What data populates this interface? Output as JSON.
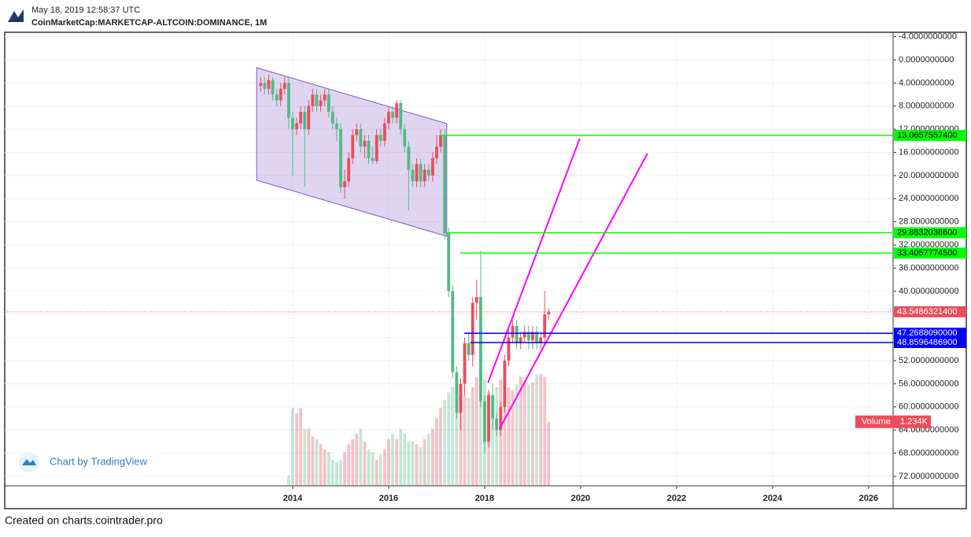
{
  "header": {
    "timestamp": "May 18, 2019 12:58:37 UTC",
    "symbol": "CoinMarketCap:MARKETCAP-ALTCOIN:DOMINANCE, 1M"
  },
  "footer": "Created on charts.cointrader.pro",
  "watermark": "Chart by TradingView",
  "chart_data": {
    "type": "candlestick",
    "inverted": true,
    "grid": true,
    "up_color": "#53b987",
    "down_color": "#eb4d5c",
    "x": [
      2013.333,
      2013.417,
      2013.5,
      2013.583,
      2013.667,
      2013.75,
      2013.833,
      2013.917,
      2014.0,
      2014.083,
      2014.167,
      2014.25,
      2014.333,
      2014.417,
      2014.5,
      2014.583,
      2014.667,
      2014.75,
      2014.833,
      2014.917,
      2015.0,
      2015.083,
      2015.167,
      2015.25,
      2015.333,
      2015.417,
      2015.5,
      2015.583,
      2015.667,
      2015.75,
      2015.833,
      2015.917,
      2016.0,
      2016.083,
      2016.167,
      2016.25,
      2016.333,
      2016.417,
      2016.5,
      2016.583,
      2016.667,
      2016.75,
      2016.833,
      2016.917,
      2017.0,
      2017.083,
      2017.167,
      2017.25,
      2017.333,
      2017.417,
      2017.5,
      2017.583,
      2017.667,
      2017.75,
      2017.833,
      2017.917,
      2018.0,
      2018.083,
      2018.167,
      2018.25,
      2018.333,
      2018.417,
      2018.5,
      2018.583,
      2018.667,
      2018.75,
      2018.833,
      2018.917,
      2019.0,
      2019.083,
      2019.167,
      2019.25,
      2019.333
    ],
    "open": [
      4.5,
      4,
      5,
      3.5,
      6,
      7,
      5,
      4,
      10,
      12,
      11,
      9,
      12,
      8,
      6,
      8,
      7,
      6,
      9,
      11,
      12,
      22,
      21,
      17,
      13,
      12,
      15,
      14,
      17,
      17.5,
      13,
      14,
      11,
      9,
      10,
      7.5,
      12,
      15,
      19,
      21,
      18,
      21,
      19,
      20,
      17,
      15,
      13,
      30,
      40,
      54,
      61,
      56,
      49,
      51,
      42,
      41,
      59,
      66,
      58,
      62,
      64,
      60,
      52,
      48,
      46,
      49,
      48,
      47,
      48.5,
      47,
      49,
      48,
      44
    ],
    "high": [
      5.5,
      6,
      6,
      7,
      8,
      8,
      6,
      12,
      20,
      13,
      12,
      22,
      13,
      9,
      9,
      9,
      8,
      10,
      12,
      14,
      23,
      24,
      22,
      18,
      14,
      16,
      17,
      18,
      18,
      18,
      15,
      15,
      12,
      11,
      11,
      13,
      16,
      26,
      22,
      22,
      22,
      22,
      21,
      21,
      18,
      16,
      31,
      41,
      55,
      62,
      64,
      58,
      52,
      53,
      45,
      60,
      68,
      67,
      64,
      65,
      65,
      61,
      53,
      49,
      50,
      50,
      49,
      50,
      50,
      50,
      50,
      49,
      45
    ],
    "low": [
      3,
      3,
      2.5,
      3,
      5,
      4,
      3,
      3,
      9,
      10,
      8,
      8,
      7,
      5,
      5,
      6,
      5,
      5,
      8,
      10,
      11,
      19,
      16,
      12,
      11,
      11,
      13,
      13,
      15,
      12,
      12,
      10,
      8,
      8,
      7,
      7,
      11,
      14,
      18,
      17,
      17,
      18,
      18,
      16,
      13,
      12,
      12,
      29,
      39,
      53,
      55,
      48,
      47,
      41,
      38,
      33,
      58,
      57,
      56,
      61,
      59,
      51,
      46,
      45,
      45,
      47,
      46,
      46,
      46,
      46,
      47,
      40,
      43
    ],
    "close": [
      4,
      5,
      3.5,
      6,
      7,
      5,
      4,
      10,
      12,
      11,
      9,
      12,
      8,
      6,
      8,
      7,
      6,
      9,
      11,
      12,
      22,
      21,
      17,
      13,
      12,
      15,
      14,
      17,
      17.5,
      13,
      14,
      11,
      9,
      10,
      7.5,
      12,
      15,
      19,
      21,
      18,
      21,
      19,
      20,
      17,
      15,
      13,
      30,
      40,
      54,
      61,
      56,
      49,
      51,
      42,
      41,
      59,
      66,
      58,
      62,
      64,
      60,
      52,
      48,
      46,
      49,
      48,
      47,
      48.5,
      47,
      49,
      48,
      44,
      43.54863214
    ],
    "volume": [
      null,
      null,
      null,
      null,
      null,
      null,
      null,
      200,
      1500,
      1400,
      1500,
      1100,
      1100,
      950,
      900,
      800,
      700,
      650,
      500,
      450,
      500,
      650,
      800,
      900,
      1000,
      1100,
      850,
      700,
      650,
      500,
      600,
      700,
      900,
      1000,
      900,
      1100,
      1000,
      850,
      850,
      800,
      750,
      900,
      1000,
      1100,
      1300,
      1500,
      1650,
      1800,
      1900,
      2000,
      1850,
      1750,
      1700,
      1900,
      2100,
      2200,
      2050,
      1800,
      1750,
      1900,
      2050,
      2100,
      1900,
      1850,
      1950,
      2100,
      2000,
      1950,
      2000,
      2150,
      2150,
      2100,
      1234
    ],
    "volume_label": "Volume",
    "volume_value_label": "1.234K",
    "xlim": [
      2008.0,
      2026.51
    ],
    "xticks": [
      2014,
      2016,
      2018,
      2020,
      2022,
      2024,
      2026
    ],
    "ylim": [
      -4.63,
      73.64
    ],
    "yticks": [
      {
        "value": -4,
        "label": "-4.0000000000"
      },
      {
        "value": 0,
        "label": "0.0000000000"
      },
      {
        "value": 4,
        "label": "4.0000000000"
      },
      {
        "value": 8,
        "label": "8.0000000000"
      },
      {
        "value": 12,
        "label": "12.0000000000"
      },
      {
        "value": 16,
        "label": "16.0000000000"
      },
      {
        "value": 20,
        "label": "20.0000000000"
      },
      {
        "value": 24,
        "label": "24.0000000000"
      },
      {
        "value": 28,
        "label": "28.0000000000"
      },
      {
        "value": 32,
        "label": "32.0000000000"
      },
      {
        "value": 36,
        "label": "36.0000000000"
      },
      {
        "value": 40,
        "label": "40.0000000000"
      },
      {
        "value": 44,
        "label": "44.0000000000"
      },
      {
        "value": 48,
        "label": "48.0000000000"
      },
      {
        "value": 52,
        "label": "52.0000000000"
      },
      {
        "value": 56,
        "label": "56.0000000000"
      },
      {
        "value": 60,
        "label": "60.0000000000"
      },
      {
        "value": 64,
        "label": "64.0000000000"
      },
      {
        "value": 68,
        "label": "68.0000000000"
      },
      {
        "value": 72,
        "label": "72.0000000000"
      }
    ],
    "current": {
      "value": 43.54863214,
      "label": "43.5486321400",
      "color": "#eb4d5c"
    },
    "levels": [
      {
        "x": 2017.08,
        "value": 13.06575574,
        "label": "13.0657557400",
        "color": "#00ff00"
      },
      {
        "x": 2017.21,
        "value": 29.88320386,
        "label": "29.8832038600",
        "color": "#00ff00"
      },
      {
        "x": 2017.49,
        "value": 33.40577745,
        "label": "33.4057774500",
        "color": "#00ff00"
      },
      {
        "x": 2017.57,
        "value": 47.268809,
        "label": "47.2688090000",
        "color": "#0000ff"
      },
      {
        "x": 2017.7,
        "value": 48.85964869,
        "label": "48.8596486900",
        "color": "#0000ff"
      }
    ],
    "channel": {
      "x": [
        2013.25,
        2017.21,
        2017.21,
        2013.25
      ],
      "y": [
        1.36,
        11.03,
        30.5,
        20.8
      ],
      "color": "#7e57c2"
    },
    "trend_lines": [
      {
        "x": [
          2018.07,
          2019.98
        ],
        "y": [
          55.8,
          13.6
        ],
        "color": "#ff00ff"
      },
      {
        "x": [
          2018.31,
          2021.39
        ],
        "y": [
          63.8,
          16.2
        ],
        "color": "#ff00ff"
      }
    ]
  }
}
